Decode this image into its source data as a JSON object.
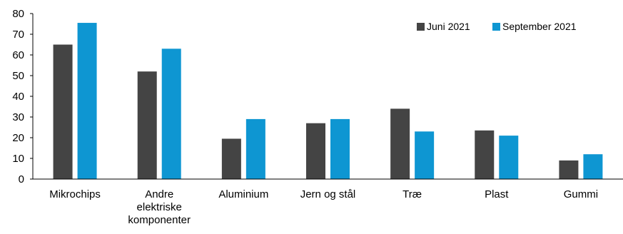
{
  "chart_data": {
    "type": "bar",
    "categories": [
      [
        "Mikrochips"
      ],
      [
        "Andre",
        "elektriske",
        "komponenter"
      ],
      [
        "Aluminium"
      ],
      [
        "Jern og stål"
      ],
      [
        "Træ"
      ],
      [
        "Plast"
      ],
      [
        "Gummi"
      ]
    ],
    "series": [
      {
        "name": "Juni 2021",
        "color": "#444444",
        "values": [
          65,
          52,
          19.5,
          27,
          34,
          23.5,
          9
        ]
      },
      {
        "name": "September 2021",
        "color": "#0e96d2",
        "values": [
          75.5,
          63,
          29,
          29,
          23,
          21,
          12
        ]
      }
    ],
    "ylim": [
      0,
      80
    ],
    "yticks": [
      "0",
      "10",
      "20",
      "30",
      "40",
      "50",
      "60",
      "70",
      "80"
    ],
    "grid": false,
    "legend_position": "top-right",
    "title": "",
    "xlabel": "",
    "ylabel": ""
  }
}
